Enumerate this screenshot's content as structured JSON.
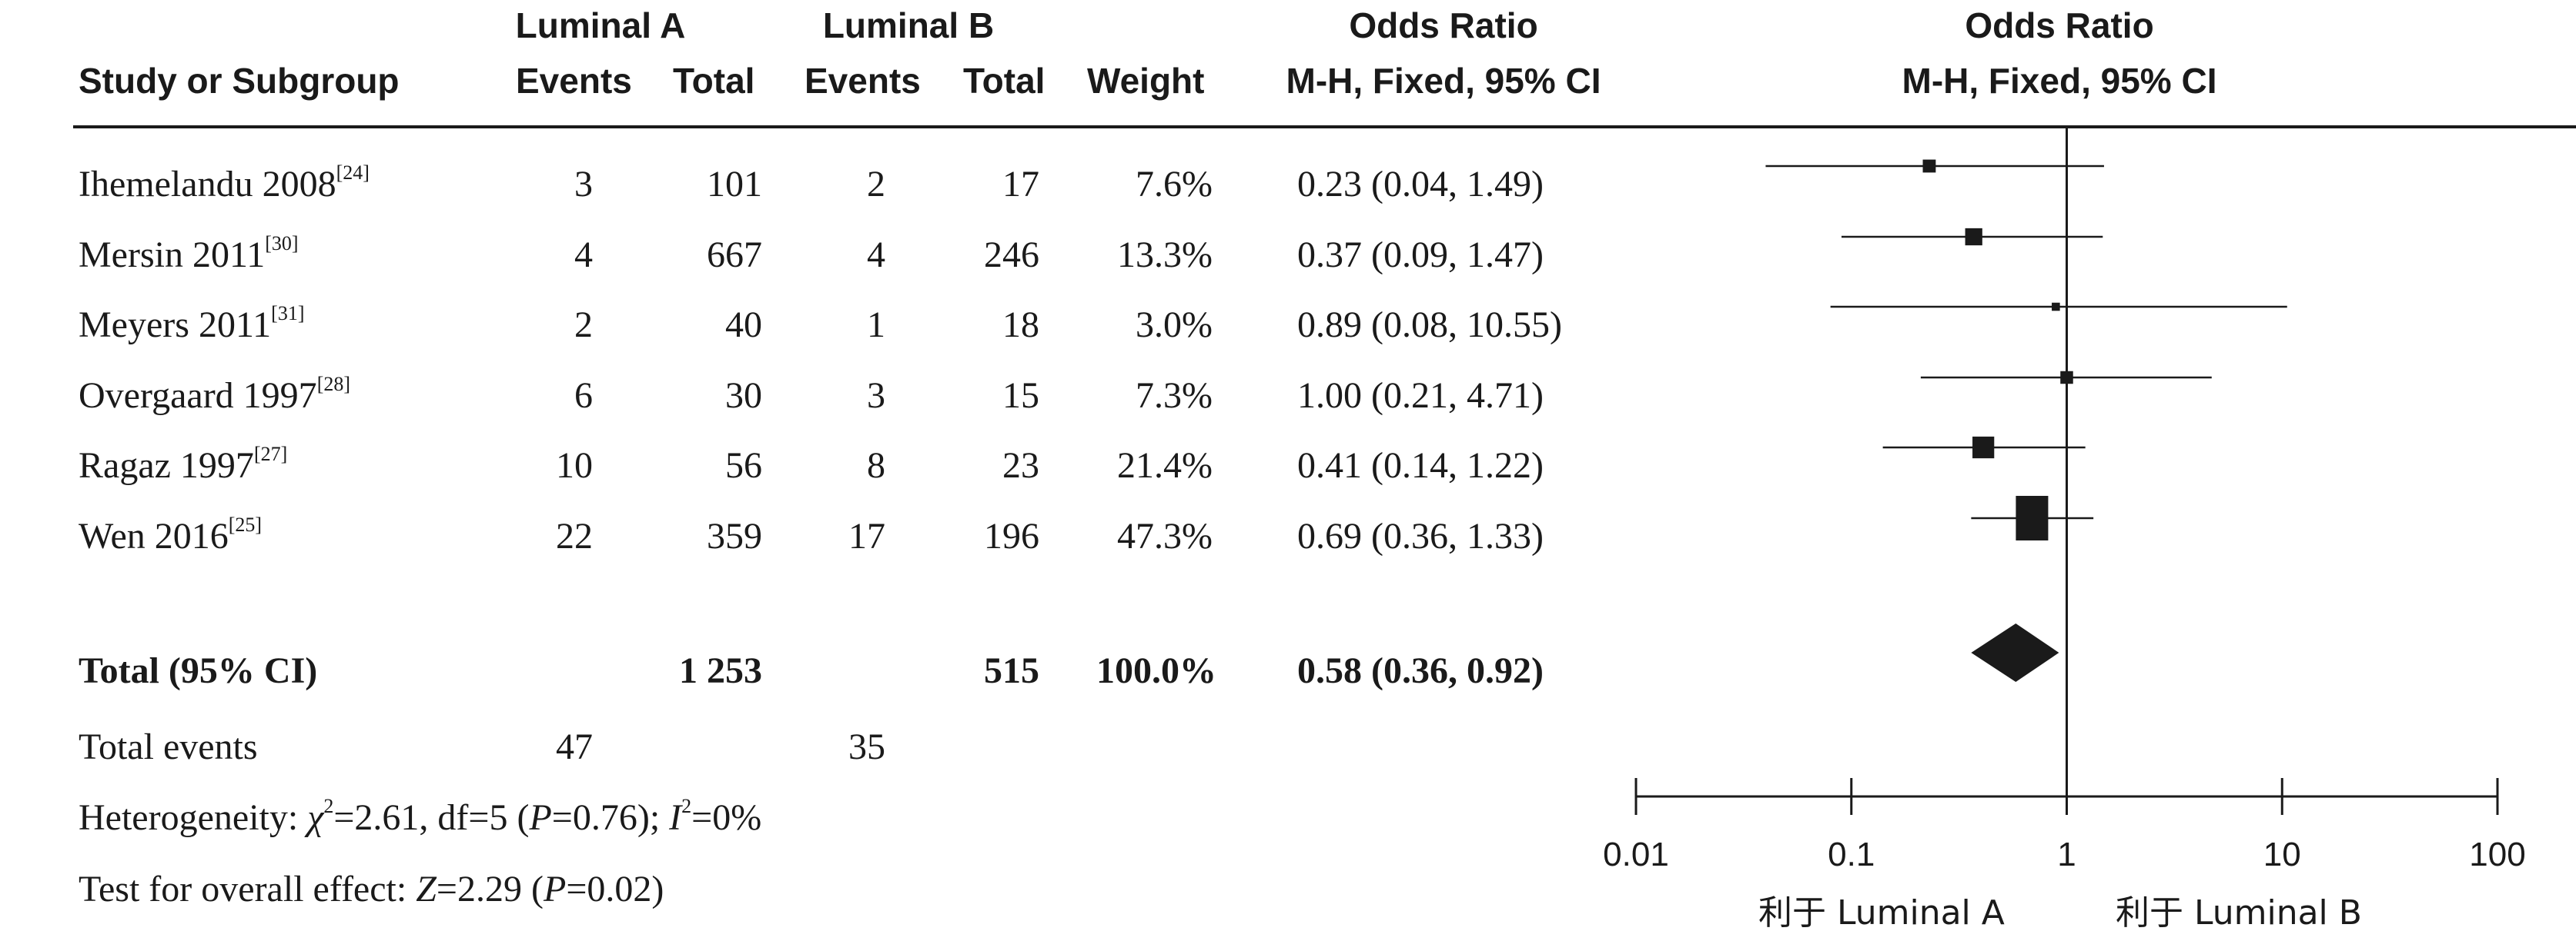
{
  "header": {
    "group_a": "Luminal A",
    "group_b": "Luminal B",
    "study": "Study or Subgroup",
    "events": "Events",
    "total": "Total",
    "weight": "Weight",
    "or_title": "Odds Ratio",
    "or_method": "M-H, Fixed, 95% CI",
    "plot_title": "Odds Ratio",
    "plot_method": "M-H, Fixed, 95% CI"
  },
  "studies": [
    {
      "name": "Ihemelandu 2008",
      "ref": "[24]",
      "a_events": "3",
      "a_total": "101",
      "b_events": "2",
      "b_total": "17",
      "weight": "7.6%",
      "ci_text": "0.23 (0.04, 1.49)"
    },
    {
      "name": "Mersin 2011",
      "ref": "[30]",
      "a_events": "4",
      "a_total": "667",
      "b_events": "4",
      "b_total": "246",
      "weight": "13.3%",
      "ci_text": "0.37 (0.09, 1.47)"
    },
    {
      "name": "Meyers 2011",
      "ref": "[31]",
      "a_events": "2",
      "a_total": "40",
      "b_events": "1",
      "b_total": "18",
      "weight": "3.0%",
      "ci_text": "0.89 (0.08, 10.55)"
    },
    {
      "name": "Overgaard 1997",
      "ref": "[28]",
      "a_events": "6",
      "a_total": "30",
      "b_events": "3",
      "b_total": "15",
      "weight": "7.3%",
      "ci_text": "1.00 (0.21, 4.71)"
    },
    {
      "name": "Ragaz 1997",
      "ref": "[27]",
      "a_events": "10",
      "a_total": "56",
      "b_events": "8",
      "b_total": "23",
      "weight": "21.4%",
      "ci_text": "0.41 (0.14, 1.22)"
    },
    {
      "name": "Wen 2016",
      "ref": "[25]",
      "a_events": "22",
      "a_total": "359",
      "b_events": "17",
      "b_total": "196",
      "weight": "47.3%",
      "ci_text": "0.69 (0.36, 1.33)"
    }
  ],
  "total": {
    "label": "Total (95% CI)",
    "a_total": "1 253",
    "b_total": "515",
    "weight": "100.0%",
    "ci_text": "0.58 (0.36, 0.92)"
  },
  "events_row": {
    "label": "Total events",
    "a_events": "47",
    "b_events": "35"
  },
  "heterogeneity": {
    "prefix": "Heterogeneity: ",
    "chi_symbol": "χ",
    "chi_sup": "2",
    "chi_value": "=2.61, df=5 (",
    "p_symbol": "P",
    "p_value": "=0.76); ",
    "i_symbol": "I",
    "i_sup": "2",
    "i_value": "=0%"
  },
  "overall": {
    "prefix": "Test for overall effect: ",
    "z_symbol": "Z",
    "z_value": "=2.29 (",
    "p_symbol": "P",
    "p_value": "=0.02)"
  },
  "favours": {
    "left": "利于 Luminal A",
    "right": "利于 Luminal B"
  },
  "chart_data": {
    "type": "forest",
    "x_scale": "log",
    "xlim": [
      0.01,
      100
    ],
    "ticks": [
      0.01,
      0.1,
      1,
      10,
      100
    ],
    "tick_labels": [
      "0.01",
      "0.1",
      "1",
      "10",
      "100"
    ],
    "reference_line": 1,
    "studies": [
      {
        "name": "Ihemelandu 2008",
        "or": 0.23,
        "lo": 0.04,
        "hi": 1.49,
        "weight": 7.6
      },
      {
        "name": "Mersin 2011",
        "or": 0.37,
        "lo": 0.09,
        "hi": 1.47,
        "weight": 13.3
      },
      {
        "name": "Meyers 2011",
        "or": 0.89,
        "lo": 0.08,
        "hi": 10.55,
        "weight": 3.0
      },
      {
        "name": "Overgaard 1997",
        "or": 1.0,
        "lo": 0.21,
        "hi": 4.71,
        "weight": 7.3
      },
      {
        "name": "Ragaz 1997",
        "or": 0.41,
        "lo": 0.14,
        "hi": 1.22,
        "weight": 21.4
      },
      {
        "name": "Wen 2016",
        "or": 0.69,
        "lo": 0.36,
        "hi": 1.33,
        "weight": 47.3
      }
    ],
    "pooled": {
      "name": "Total (95% CI)",
      "or": 0.58,
      "lo": 0.36,
      "hi": 0.92
    }
  }
}
